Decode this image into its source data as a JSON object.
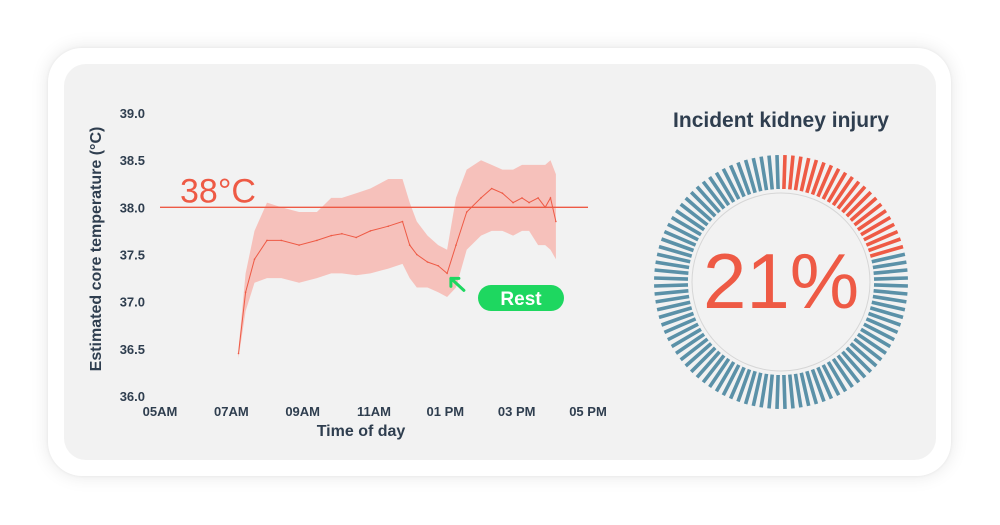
{
  "chart_data": [
    {
      "type": "line",
      "xlabel": "Time of day",
      "ylabel": "Estimated core temperature (°C)",
      "x_ticks": [
        "05AM",
        "07AM",
        "09AM",
        "11AM",
        "01 PM",
        "03 PM",
        "05 PM"
      ],
      "x_tick_hours": [
        5,
        7,
        9,
        11,
        13,
        15,
        17
      ],
      "xlim": [
        5,
        17
      ],
      "y_ticks": [
        "36.0",
        "36.5",
        "37.0",
        "37.5",
        "38.0",
        "38.5",
        "39.0"
      ],
      "ylim": [
        36.0,
        39.0
      ],
      "reference_line": {
        "value": 38.0,
        "label": "38°C"
      },
      "annotation": {
        "text": "Rest",
        "x": 13.1,
        "y": 37.3
      },
      "colors": {
        "line": "#ee5a45",
        "band": "#f7b8b1",
        "reference": "#ee5a45",
        "annotation": "#1ed760",
        "axis_text": "#2f3e4f"
      },
      "series": [
        {
          "x": [
            7.2,
            7.4,
            7.65,
            8.0,
            8.4,
            8.9,
            9.4,
            9.8,
            10.1,
            10.5,
            10.9,
            11.4,
            11.8,
            12.0,
            12.2,
            12.5,
            12.8,
            13.05,
            13.3,
            13.6,
            14.0,
            14.3,
            14.6,
            14.9,
            15.15,
            15.35,
            15.6,
            15.8,
            15.95,
            16.1
          ],
          "y": [
            36.45,
            37.1,
            37.45,
            37.65,
            37.65,
            37.6,
            37.65,
            37.7,
            37.72,
            37.68,
            37.75,
            37.8,
            37.85,
            37.6,
            37.5,
            37.42,
            37.38,
            37.3,
            37.6,
            37.95,
            38.1,
            38.2,
            38.15,
            38.05,
            38.1,
            38.05,
            38.1,
            38.0,
            38.1,
            37.85
          ]
        }
      ],
      "band_upper": [
        36.5,
        37.3,
        37.75,
        38.05,
        38.0,
        37.95,
        37.95,
        38.1,
        38.1,
        38.15,
        38.2,
        38.3,
        38.3,
        38.05,
        37.85,
        37.7,
        37.6,
        37.55,
        38.1,
        38.4,
        38.5,
        38.45,
        38.4,
        38.4,
        38.45,
        38.45,
        38.45,
        38.45,
        38.5,
        38.35
      ],
      "band_lower": [
        36.4,
        36.9,
        37.2,
        37.25,
        37.25,
        37.2,
        37.25,
        37.3,
        37.3,
        37.28,
        37.3,
        37.35,
        37.4,
        37.25,
        37.15,
        37.15,
        37.1,
        37.05,
        37.15,
        37.55,
        37.7,
        37.75,
        37.75,
        37.7,
        37.75,
        37.75,
        37.6,
        37.6,
        37.55,
        37.45
      ]
    },
    {
      "type": "gauge",
      "title": "Incident kidney injury",
      "value": 21,
      "value_label": "21%",
      "total_segments": 100,
      "colors": {
        "filled": "#ee5a45",
        "unfilled": "#5b91a8"
      }
    }
  ]
}
